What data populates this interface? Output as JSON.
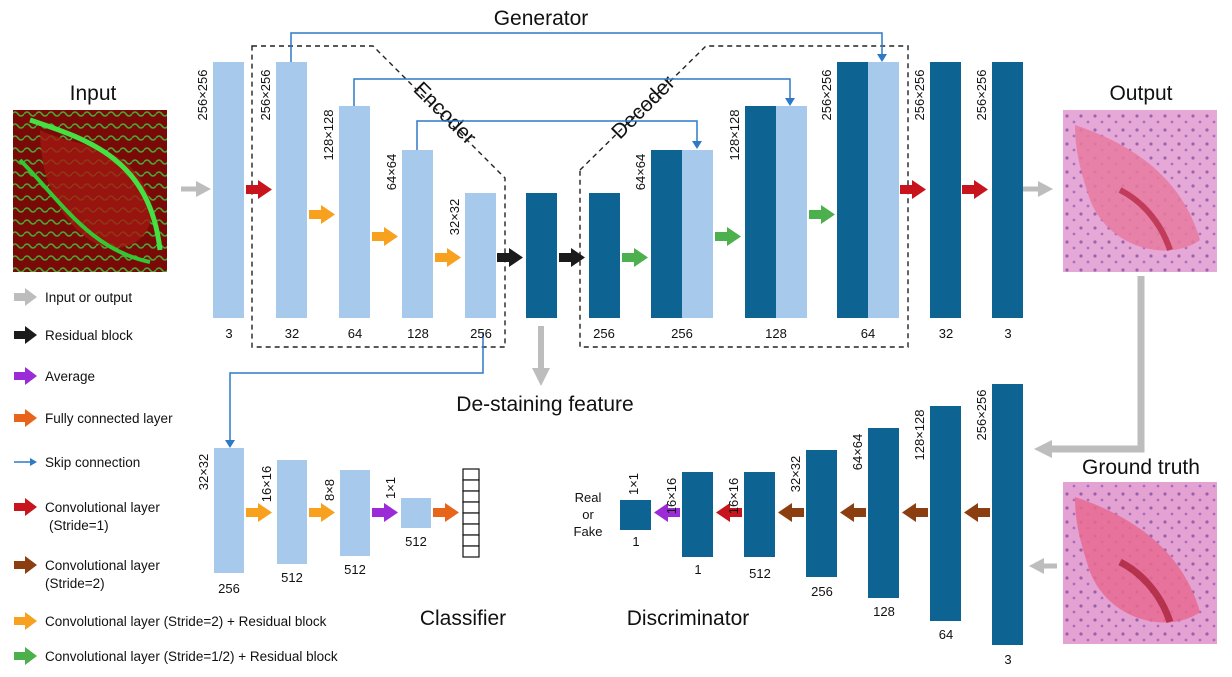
{
  "titles": {
    "generator": "Generator",
    "encoder": "Encoder",
    "decoder": "Decoder",
    "input": "Input",
    "output": "Output",
    "ground_truth": "Ground truth",
    "destaining": "De-staining feature",
    "classifier": "Classifier",
    "discriminator": "Discriminator",
    "real": "Real",
    "or": "or",
    "fake": "Fake"
  },
  "colors": {
    "light_blue": "#a7c9ec",
    "dark_blue": "#0d6391",
    "gray": "#bdbdbd",
    "black": "#1b1b1b",
    "purple": "#9a2bd6",
    "orange_fc": "#e8641a",
    "skip": "#2d79c6",
    "red": "#c8141c",
    "brown": "#8b3e10",
    "orange": "#f7a11f",
    "green": "#4cb04c"
  },
  "generator": {
    "enc_dims": [
      "256×256",
      "256×256",
      "128×128",
      "64×64",
      "32×32"
    ],
    "enc_channels": [
      "3",
      "32",
      "64",
      "128",
      "256"
    ],
    "bottleneck_channels": "256",
    "dec_dims": [
      "64×64",
      "128×128",
      "256×256"
    ],
    "dec_channels": [
      "256",
      "128",
      "64"
    ],
    "out_dims": [
      "256×256",
      "256×256"
    ],
    "out_channels": [
      "32",
      "3"
    ]
  },
  "classifier": {
    "dims": [
      "32×32",
      "16×16",
      "8×8",
      "1×1"
    ],
    "channels": [
      "256",
      "512",
      "512",
      "512"
    ]
  },
  "discriminator": {
    "dims": [
      "256×256",
      "128×128",
      "64×64",
      "32×32",
      "16×16",
      "16×16",
      "1×1"
    ],
    "channels": [
      "3",
      "64",
      "128",
      "256",
      "512",
      "1",
      "1"
    ]
  },
  "legend": [
    {
      "label": "Input or output",
      "color": "#bdbdbd"
    },
    {
      "label": "Residual block",
      "color": "#1b1b1b"
    },
    {
      "label": "Average",
      "color": "#9a2bd6"
    },
    {
      "label": "Fully connected layer",
      "color": "#e8641a"
    },
    {
      "label": "Skip connection",
      "color": "#2d79c6"
    },
    {
      "label": "Convolutional layer",
      "label2": "(Stride=1)",
      "color": "#c8141c"
    },
    {
      "label": "Convolutional layer",
      "label2": "(Stride=2)",
      "color": "#8b3e10"
    },
    {
      "label": "Convolutional layer (Stride=2) + Residual block",
      "color": "#f7a11f"
    },
    {
      "label": "Convolutional layer (Stride=1/2) + Residual block",
      "color": "#4cb04c"
    }
  ]
}
